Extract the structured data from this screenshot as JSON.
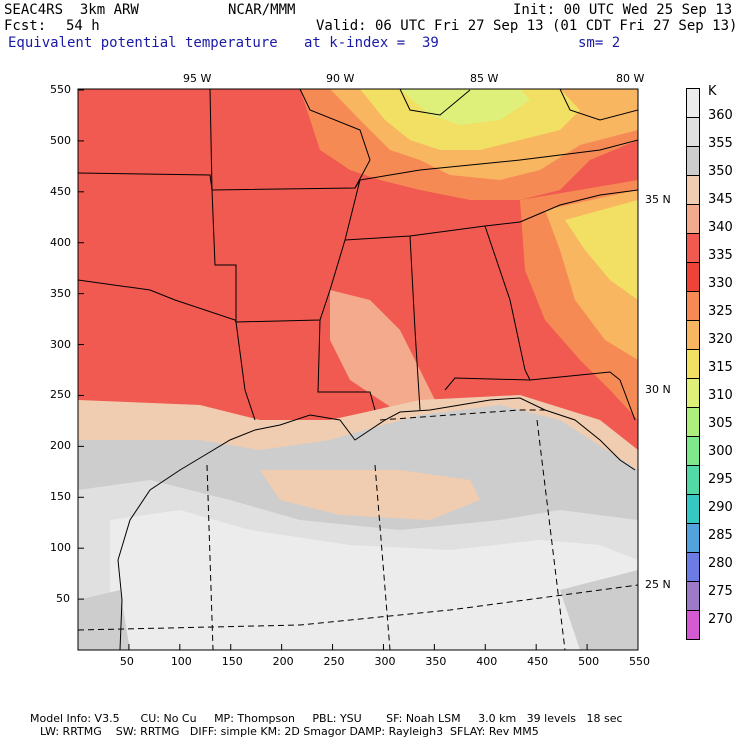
{
  "header": {
    "model": "SEAC4RS  3km ARW",
    "org": "NCAR/MMM",
    "init": "Init: 00 UTC Wed 25 Sep 13",
    "fcst_label": "Fcst:",
    "fcst_value": "54 h",
    "valid": "Valid: 06 UTC Fri 27 Sep 13 (01 CDT Fri 27 Sep 13)",
    "field": "Equivalent potential temperature",
    "level": "at k-index =  39",
    "smooth": "sm= 2"
  },
  "map": {
    "x_ticks": [
      "50",
      "100",
      "150",
      "200",
      "250",
      "300",
      "350",
      "400",
      "450",
      "500",
      "550"
    ],
    "y_ticks": [
      "50",
      "100",
      "150",
      "200",
      "250",
      "300",
      "350",
      "400",
      "450",
      "500",
      "550"
    ],
    "lon_labels": [
      "95 W",
      "90 W",
      "85 W",
      "80 W"
    ],
    "lat_labels": [
      "35 N",
      "30 N",
      "25 N"
    ]
  },
  "colorbar": {
    "unit": "K",
    "levels": [
      "360",
      "355",
      "350",
      "345",
      "340",
      "335",
      "330",
      "325",
      "320",
      "315",
      "310",
      "305",
      "300",
      "295",
      "290",
      "285",
      "280",
      "275",
      "270"
    ],
    "colors": [
      "#ececec",
      "#e0e0e0",
      "#cdcdcd",
      "#f0cdb0",
      "#f4aa8c",
      "#f05a50",
      "#ee4438",
      "#f68a55",
      "#f8b660",
      "#f2e064",
      "#dff07a",
      "#aeee7c",
      "#7ee88a",
      "#52d9a5",
      "#36c8c2",
      "#52a2dc",
      "#6c7ce4",
      "#9c7ac8",
      "#d45ad4"
    ]
  },
  "footer": {
    "line1": "Model Info: V3.5      CU: No Cu     MP: Thompson     PBL: YSU       SF: Noah LSM     3.0 km   39 levels   18 sec",
    "line2": "LW: RRTMG    SW: RRTMG   DIFF: simple KM: 2D Smagor DAMP: Rayleigh3  SFLAY: Rev MM5"
  }
}
